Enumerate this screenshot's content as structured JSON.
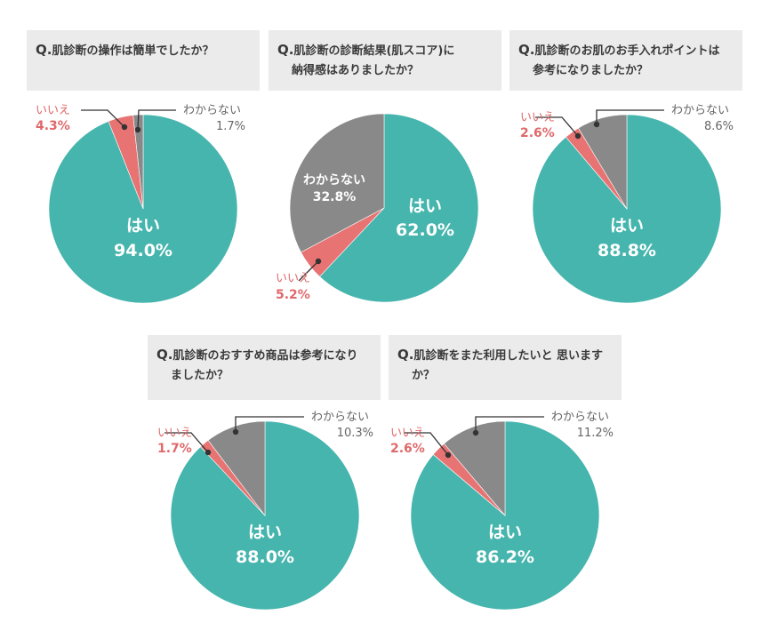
{
  "colors": {
    "yes": "#46b5ad",
    "no": "#e87373",
    "unknown": "#898989",
    "question_bg": "#ebebeb",
    "label_no": "#e0686a",
    "label_unknown": "#666666"
  },
  "chart_data": [
    {
      "type": "pie",
      "title": "Q.肌診断の操作は簡単でしたか？",
      "slices": [
        {
          "label": "はい",
          "value": 94.0,
          "display": "94.0%"
        },
        {
          "label": "いいえ",
          "value": 4.3,
          "display": "4.3%"
        },
        {
          "label": "わからない",
          "value": 1.7,
          "display": "1.7%"
        }
      ]
    },
    {
      "type": "pie",
      "title": "Q.肌診断の診断結果(肌スコア)に納得感はありましたか？",
      "slices": [
        {
          "label": "はい",
          "value": 62.0,
          "display": "62.0%"
        },
        {
          "label": "いいえ",
          "value": 5.2,
          "display": "5.2%"
        },
        {
          "label": "わからない",
          "value": 32.8,
          "display": "32.8%"
        }
      ]
    },
    {
      "type": "pie",
      "title": "Q.肌診断のお肌のお手入れポイントは参考になりましたか？",
      "slices": [
        {
          "label": "はい",
          "value": 88.8,
          "display": "88.8%"
        },
        {
          "label": "いいえ",
          "value": 2.6,
          "display": "2.6%"
        },
        {
          "label": "わからない",
          "value": 8.6,
          "display": "8.6%"
        }
      ]
    },
    {
      "type": "pie",
      "title": "Q.肌診断のおすすめ商品は参考になりましたか？",
      "slices": [
        {
          "label": "はい",
          "value": 88.0,
          "display": "88.0%"
        },
        {
          "label": "いいえ",
          "value": 1.7,
          "display": "1.7%"
        },
        {
          "label": "わからない",
          "value": 10.3,
          "display": "10.3%"
        }
      ]
    },
    {
      "type": "pie",
      "title": "Q.肌診断をまた利用したいと 思いますか？",
      "slices": [
        {
          "label": "はい",
          "value": 86.2,
          "display": "86.2%"
        },
        {
          "label": "いいえ",
          "value": 2.6,
          "display": "2.6%"
        },
        {
          "label": "わからない",
          "value": 11.2,
          "display": "11.2%"
        }
      ]
    }
  ],
  "questions": [
    {
      "mark": "Q.",
      "lines": [
        "肌診断の操作は簡単でしたか？"
      ]
    },
    {
      "mark": "Q.",
      "lines": [
        "肌診断の診断結果(肌スコア)に",
        "納得感はありましたか？"
      ]
    },
    {
      "mark": "Q.",
      "lines": [
        "肌診断のお肌のお手入れポイントは",
        "参考になりましたか？"
      ]
    },
    {
      "mark": "Q.",
      "lines": [
        "肌診断のおすすめ商品は参考になり",
        "ましたか？"
      ]
    },
    {
      "mark": "Q.",
      "lines": [
        "肌診断をまた利用したいと 思います",
        "か？"
      ]
    }
  ]
}
